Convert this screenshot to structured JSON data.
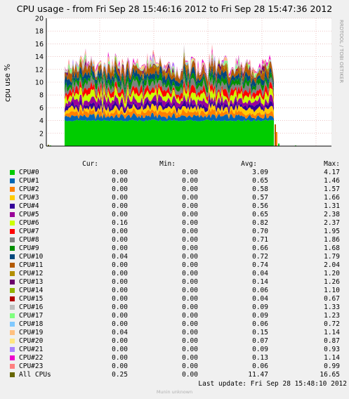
{
  "chart_data": {
    "type": "area",
    "title": "CPU usage - from Fri Sep 28 15:46:16 2012 to Fri Sep 28 15:47:36 2012",
    "ylabel": "cpu use %",
    "xlabel": "",
    "ylim": [
      0,
      20
    ],
    "yticks": [
      0,
      2,
      4,
      6,
      8,
      10,
      12,
      14,
      16,
      18,
      20
    ],
    "grid": true,
    "stacked": true,
    "side_label": "RRDTOOL / TOBI OETIKER",
    "columns": [
      "Cur:",
      "Min:",
      "Avg:",
      "Max:"
    ],
    "series": [
      {
        "name": "CPU#0",
        "color": "#00cc00",
        "cur": "0.00",
        "min": "0.00",
        "avg": "3.09",
        "max": "4.17"
      },
      {
        "name": "CPU#1",
        "color": "#0066b3",
        "cur": "0.00",
        "min": "0.00",
        "avg": "0.65",
        "max": "1.46"
      },
      {
        "name": "CPU#2",
        "color": "#ff8000",
        "cur": "0.00",
        "min": "0.00",
        "avg": "0.58",
        "max": "1.57"
      },
      {
        "name": "CPU#3",
        "color": "#ffcc00",
        "cur": "0.00",
        "min": "0.00",
        "avg": "0.57",
        "max": "1.66"
      },
      {
        "name": "CPU#4",
        "color": "#330099",
        "cur": "0.00",
        "min": "0.00",
        "avg": "0.56",
        "max": "1.31"
      },
      {
        "name": "CPU#5",
        "color": "#990099",
        "cur": "0.00",
        "min": "0.00",
        "avg": "0.65",
        "max": "2.38"
      },
      {
        "name": "CPU#6",
        "color": "#ccff00",
        "cur": "0.16",
        "min": "0.00",
        "avg": "0.82",
        "max": "2.37"
      },
      {
        "name": "CPU#7",
        "color": "#ff0000",
        "cur": "0.00",
        "min": "0.00",
        "avg": "0.70",
        "max": "1.95"
      },
      {
        "name": "CPU#8",
        "color": "#808080",
        "cur": "0.00",
        "min": "0.00",
        "avg": "0.71",
        "max": "1.86"
      },
      {
        "name": "CPU#9",
        "color": "#008f00",
        "cur": "0.00",
        "min": "0.00",
        "avg": "0.66",
        "max": "1.68"
      },
      {
        "name": "CPU#10",
        "color": "#00487d",
        "cur": "0.04",
        "min": "0.00",
        "avg": "0.72",
        "max": "1.79"
      },
      {
        "name": "CPU#11",
        "color": "#b35a00",
        "cur": "0.00",
        "min": "0.00",
        "avg": "0.74",
        "max": "2.04"
      },
      {
        "name": "CPU#12",
        "color": "#b38f00",
        "cur": "0.00",
        "min": "0.00",
        "avg": "0.04",
        "max": "1.20"
      },
      {
        "name": "CPU#13",
        "color": "#6b006b",
        "cur": "0.00",
        "min": "0.00",
        "avg": "0.14",
        "max": "1.26"
      },
      {
        "name": "CPU#14",
        "color": "#8fb300",
        "cur": "0.00",
        "min": "0.00",
        "avg": "0.06",
        "max": "1.10"
      },
      {
        "name": "CPU#15",
        "color": "#b30000",
        "cur": "0.00",
        "min": "0.00",
        "avg": "0.04",
        "max": "0.67"
      },
      {
        "name": "CPU#16",
        "color": "#bebebe",
        "cur": "0.00",
        "min": "0.00",
        "avg": "0.09",
        "max": "1.33"
      },
      {
        "name": "CPU#17",
        "color": "#80ff80",
        "cur": "0.00",
        "min": "0.00",
        "avg": "0.09",
        "max": "1.23"
      },
      {
        "name": "CPU#18",
        "color": "#80c9ff",
        "cur": "0.00",
        "min": "0.00",
        "avg": "0.06",
        "max": "0.72"
      },
      {
        "name": "CPU#19",
        "color": "#ffc080",
        "cur": "0.04",
        "min": "0.00",
        "avg": "0.15",
        "max": "1.14"
      },
      {
        "name": "CPU#20",
        "color": "#ffe680",
        "cur": "0.00",
        "min": "0.00",
        "avg": "0.07",
        "max": "0.87"
      },
      {
        "name": "CPU#21",
        "color": "#aa80ff",
        "cur": "0.00",
        "min": "0.00",
        "avg": "0.09",
        "max": "0.93"
      },
      {
        "name": "CPU#22",
        "color": "#ee00cc",
        "cur": "0.00",
        "min": "0.00",
        "avg": "0.13",
        "max": "1.14"
      },
      {
        "name": "CPU#23",
        "color": "#ff8080",
        "cur": "0.00",
        "min": "0.00",
        "avg": "0.06",
        "max": "0.99"
      },
      {
        "name": "All CPUs",
        "color": "#666600",
        "cur": "0.25",
        "min": "0.00",
        "avg": "11.47",
        "max": "16.65"
      }
    ]
  },
  "last_update": "Last update:  Fri Sep 28 15:48:10 2012",
  "footer": "Munin unknown"
}
